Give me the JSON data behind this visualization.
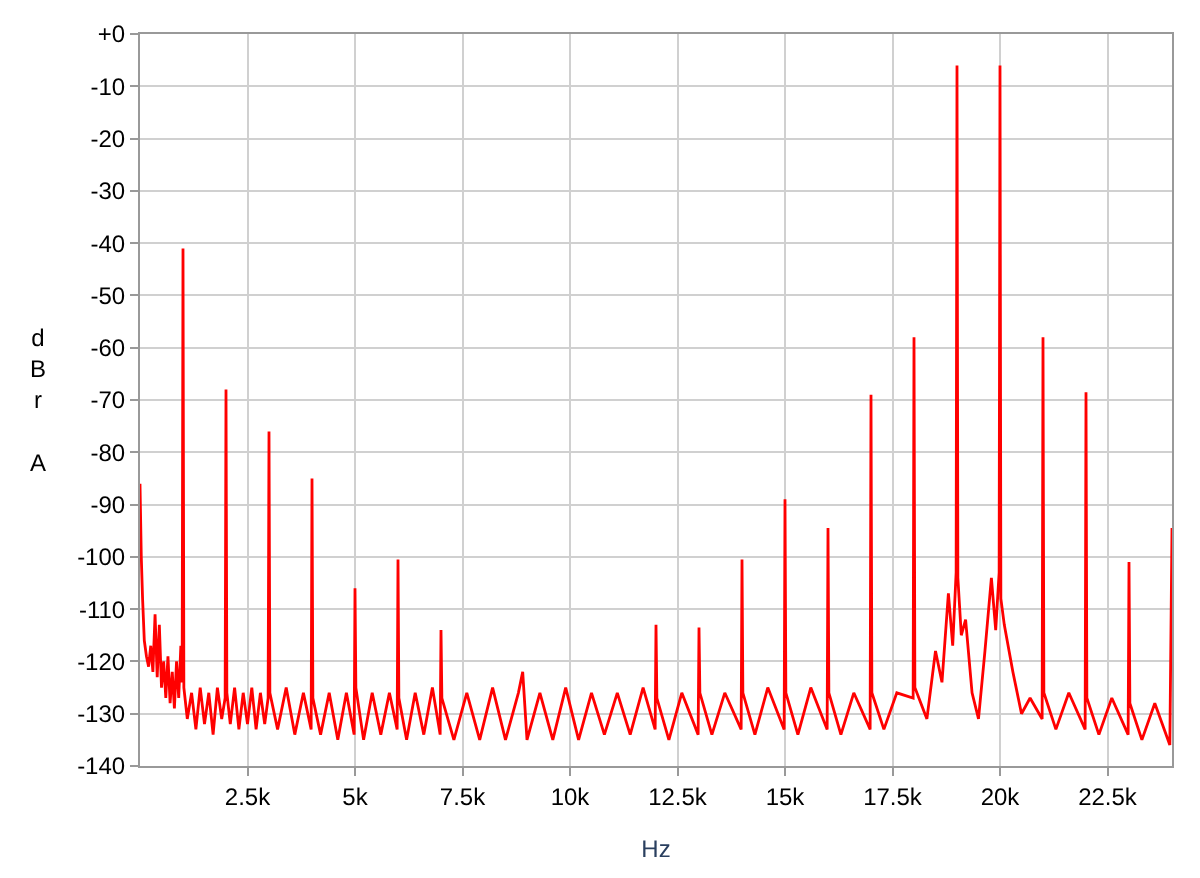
{
  "chart_data": {
    "type": "line",
    "xlabel": "Hz",
    "ylabel": "dBr A",
    "xlim": [
      0,
      24000
    ],
    "ylim": [
      -140,
      0
    ],
    "xticks": [
      {
        "value": 2500,
        "label": "2.5k"
      },
      {
        "value": 5000,
        "label": "5k"
      },
      {
        "value": 7500,
        "label": "7.5k"
      },
      {
        "value": 10000,
        "label": "10k"
      },
      {
        "value": 12500,
        "label": "12.5k"
      },
      {
        "value": 15000,
        "label": "15k"
      },
      {
        "value": 17500,
        "label": "17.5k"
      },
      {
        "value": 20000,
        "label": "20k"
      },
      {
        "value": 22500,
        "label": "22.5k"
      }
    ],
    "yticks": [
      {
        "value": 0,
        "label": "+0"
      },
      -10,
      -20,
      -30,
      -40,
      -50,
      -60,
      -70,
      -80,
      -90,
      -100,
      -110,
      -120,
      -130,
      -140
    ],
    "grid": true,
    "legend": false,
    "marker": "none",
    "line_style": "solid",
    "x": [
      0,
      30,
      60,
      100,
      150,
      200,
      250,
      300,
      350,
      400,
      450,
      500,
      550,
      600,
      650,
      700,
      750,
      800,
      850,
      900,
      950,
      980,
      1000,
      1020,
      1100,
      1200,
      1300,
      1400,
      1500,
      1600,
      1700,
      1800,
      1900,
      1980,
      2000,
      2020,
      2100,
      2200,
      2300,
      2400,
      2500,
      2600,
      2700,
      2800,
      2900,
      2980,
      3000,
      3020,
      3200,
      3400,
      3600,
      3800,
      3980,
      4000,
      4020,
      4200,
      4400,
      4600,
      4800,
      4980,
      5000,
      5020,
      5200,
      5400,
      5600,
      5800,
      5980,
      6000,
      6020,
      6200,
      6400,
      6600,
      6800,
      6980,
      7000,
      7020,
      7300,
      7600,
      7900,
      8200,
      8500,
      8800,
      8900,
      9000,
      9300,
      9600,
      9900,
      10200,
      10500,
      10800,
      11100,
      11400,
      11700,
      11980,
      12000,
      12020,
      12300,
      12600,
      12980,
      13000,
      13020,
      13300,
      13600,
      13980,
      14000,
      14020,
      14300,
      14600,
      14980,
      15000,
      15020,
      15300,
      15600,
      15980,
      16000,
      16020,
      16300,
      16600,
      16980,
      17000,
      17020,
      17300,
      17600,
      17980,
      18000,
      18020,
      18300,
      18500,
      18650,
      18800,
      18900,
      18980,
      19000,
      19020,
      19100,
      19200,
      19350,
      19500,
      19650,
      19800,
      19900,
      19980,
      20000,
      20020,
      20100,
      20300,
      20500,
      20700,
      20980,
      21000,
      21020,
      21300,
      21600,
      21980,
      22000,
      22020,
      22300,
      22600,
      22980,
      23000,
      23020,
      23300,
      23600,
      23950,
      24000
    ],
    "series": [
      {
        "color": "#ff0000",
        "values": [
          -86,
          -100,
          -108,
          -116,
          -119,
          -121,
          -117,
          -122,
          -111,
          -123,
          -113,
          -125,
          -120,
          -127,
          -119,
          -128,
          -122,
          -129,
          -120,
          -127,
          -117,
          -124,
          -41,
          -125,
          -131,
          -126,
          -133,
          -125,
          -132,
          -126,
          -134,
          -125,
          -131,
          -127,
          -68,
          -126,
          -132,
          -125,
          -133,
          -126,
          -132,
          -125,
          -133,
          -126,
          -132,
          -127,
          -76,
          -126,
          -133,
          -125,
          -134,
          -126,
          -133,
          -85,
          -127,
          -134,
          -126,
          -135,
          -126,
          -134,
          -106,
          -125,
          -135,
          -126,
          -134,
          -126,
          -133,
          -100.5,
          -127,
          -135,
          -126,
          -134,
          -125,
          -134,
          -114,
          -127,
          -135,
          -126,
          -135,
          -125,
          -135,
          -126,
          -122,
          -135,
          -126,
          -135,
          -125,
          -135,
          -126,
          -134,
          -126,
          -134,
          -125,
          -133,
          -113,
          -127,
          -135,
          -126,
          -134,
          -113.5,
          -126,
          -134,
          -126,
          -133,
          -100.5,
          -126,
          -134,
          -125,
          -133,
          -89,
          -126,
          -134,
          -125,
          -133,
          -94.5,
          -126,
          -134,
          -126,
          -133,
          -69,
          -126,
          -133,
          -126,
          -127,
          -58,
          -125,
          -131,
          -118,
          -124,
          -107,
          -117,
          -103,
          -6,
          -104,
          -115,
          -112,
          -126,
          -131,
          -118,
          -104,
          -114,
          -103,
          -6,
          -108,
          -113,
          -122,
          -130,
          -127,
          -131,
          -58,
          -126,
          -133,
          -126,
          -133,
          -68.5,
          -127,
          -134,
          -127,
          -134,
          -101,
          -128,
          -135,
          -128,
          -136,
          -94.5
        ]
      }
    ]
  }
}
